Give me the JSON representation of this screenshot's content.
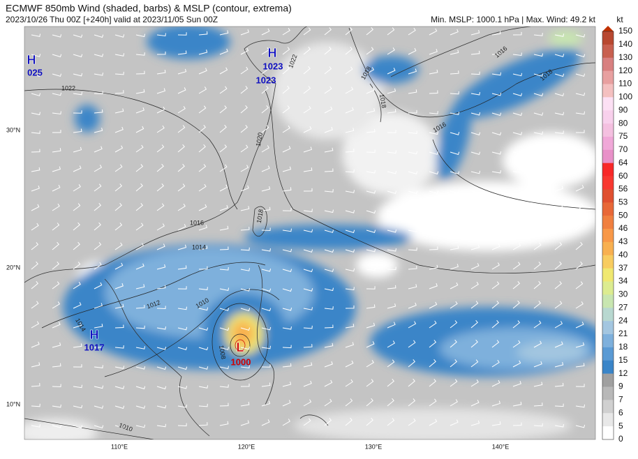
{
  "header": {
    "title": "ECMWF 850mb Wind (shaded, barbs) & MSLP (contour, extrema)",
    "subtitle": "2023/10/26 Thu 00Z [+240h] valid at 2023/11/05 Sun 00Z",
    "stats": "Min. MSLP: 1000.1 hPa | Max. Wind: 49.2 kt"
  },
  "colorbar": {
    "unit": "kt",
    "labels": [
      "150",
      "140",
      "130",
      "120",
      "110",
      "100",
      "90",
      "80",
      "75",
      "70",
      "64",
      "60",
      "56",
      "53",
      "50",
      "46",
      "43",
      "40",
      "37",
      "34",
      "30",
      "27",
      "24",
      "21",
      "18",
      "15",
      "12",
      "9",
      "7",
      "6",
      "5",
      "0"
    ],
    "colors": [
      "#b84830",
      "#c86050",
      "#d88080",
      "#e8a0a0",
      "#f4c0c0",
      "#fce0f4",
      "#f8d0ec",
      "#f4c0e0",
      "#f0a8d8",
      "#e890c8",
      "#f82828",
      "#f83830",
      "#e05030",
      "#e86838",
      "#f08040",
      "#f89848",
      "#f8b050",
      "#f8cc60",
      "#f0e870",
      "#dcec90",
      "#c8e6b0",
      "#b8d8d0",
      "#a3c6e0",
      "#7eb0dc",
      "#5a9ad4",
      "#3a85c8",
      "#a0a0a0",
      "#b8b8b8",
      "#d0d0d0",
      "#e8e8e8",
      "#ffffff"
    ],
    "overflow_color": "#c03000"
  },
  "map": {
    "lat_labels": [
      "30°N",
      "20°N",
      "10°N"
    ],
    "lon_labels": [
      "110°E",
      "120°E",
      "130°E",
      "140°E"
    ],
    "extrema": [
      {
        "symbol": "H",
        "value": "025"
      },
      {
        "symbol": "H",
        "value": "1023"
      },
      {
        "symbol": "H",
        "value": "1017"
      },
      {
        "symbol": "L",
        "value": "1000"
      }
    ],
    "extra_value": "1023",
    "contour_labels": [
      "1022",
      "1022",
      "1018",
      "1018",
      "1016",
      "1018",
      "1016",
      "1020",
      "1018",
      "1016",
      "1014",
      "1012",
      "1010",
      "1014",
      "1008",
      "1010"
    ]
  }
}
